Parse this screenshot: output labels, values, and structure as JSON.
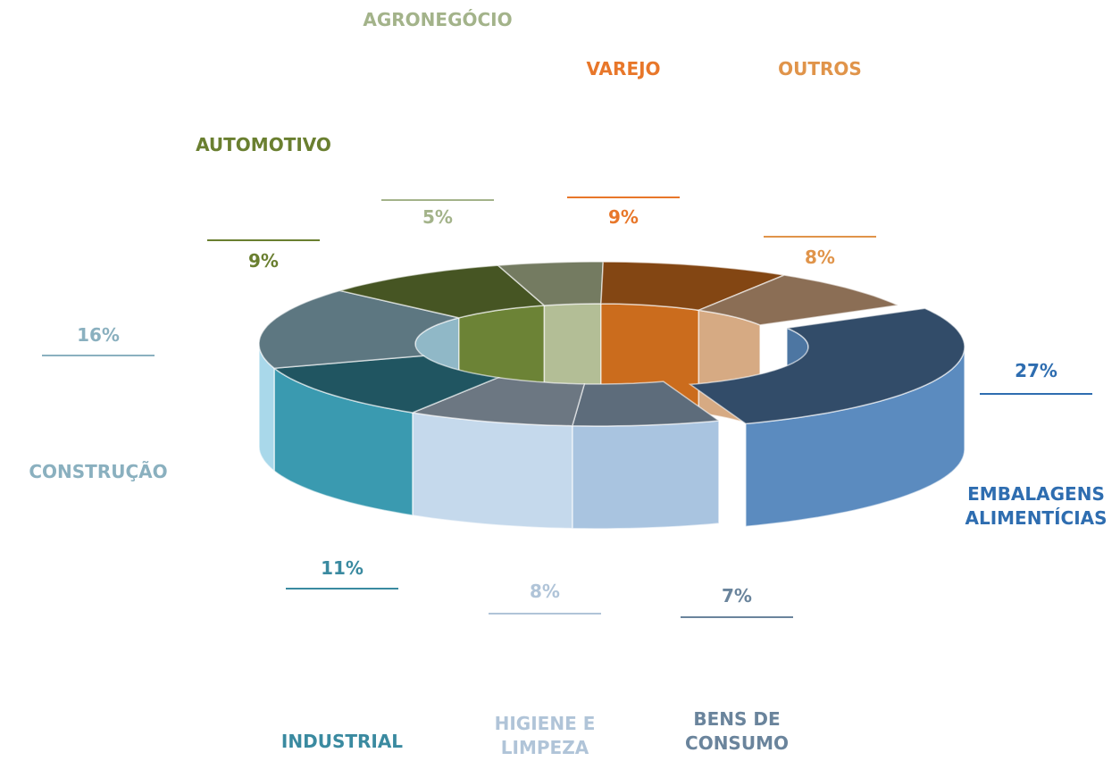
{
  "chart_data": {
    "type": "pie",
    "categories": [
      "EMBALAGENS ALIMENTÍCIAS",
      "BENS DE CONSUMO",
      "HIGIENE E LIMPEZA",
      "INDUSTRIAL",
      "CONSTRUÇÃO",
      "AUTOMOTIVO",
      "AGRONEGÓCIO",
      "VAREJO",
      "OUTROS"
    ],
    "values": [
      27,
      7,
      8,
      11,
      16,
      9,
      5,
      9,
      8
    ],
    "value_labels": [
      "27%",
      "7%",
      "8%",
      "11%",
      "16%",
      "9%",
      "5%",
      "9%",
      "8%"
    ],
    "colors": [
      "#5b8bbf",
      "#a9c4e0",
      "#c5d9ec",
      "#3a9ab0",
      "#a9d8ea",
      "#7f9a40",
      "#d2e0b0",
      "#ef7f22",
      "#fcc89a"
    ]
  }
}
